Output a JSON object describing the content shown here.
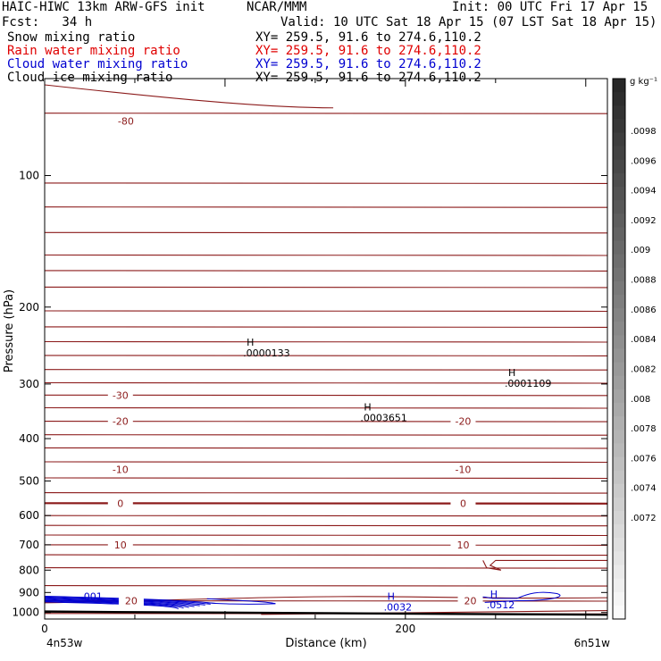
{
  "header": {
    "model": "HAIC-HIWC 13km ARW-GFS init",
    "org": "NCAR/MMM",
    "init": "Init: 00 UTC Fri 17 Apr 15",
    "fcst": "Fcst:   34 h",
    "valid": "Valid: 10 UTC Sat 18 Apr 15 (07 LST Sat 18 Apr 15)"
  },
  "fields": [
    {
      "label": "Snow mixing ratio",
      "xy": "XY= 259.5, 91.6 to 274.6,110.2",
      "color": "#000000"
    },
    {
      "label": "Rain water mixing ratio",
      "xy": "XY= 259.5, 91.6 to 274.6,110.2",
      "color": "#e00000"
    },
    {
      "label": "Cloud water mixing ratio",
      "xy": "XY= 259.5, 91.6 to 274.6,110.2",
      "color": "#0000d0"
    },
    {
      "label": "Cloud ice mixing ratio",
      "xy": "XY= 259.5, 91.6 to 274.6,110.2",
      "color": "#000000"
    }
  ],
  "chart_data": {
    "type": "contour",
    "xlabel": "Distance (km)",
    "ylabel": "Pressure (hPa)",
    "x_ticks": [
      0,
      200
    ],
    "xlim": [
      0,
      312
    ],
    "y_ticks": [
      100,
      200,
      300,
      400,
      500,
      600,
      700,
      800,
      900,
      1000
    ],
    "ylim": [
      1035,
      60
    ],
    "y_scale": "log",
    "x_endpoints": [
      "4n53w",
      "6n51w"
    ],
    "temperature_contours": [
      {
        "level": -80,
        "p": 75,
        "label_x": 45
      },
      {
        "level": -30,
        "p": 318,
        "label_x": 42
      },
      {
        "level": -20,
        "p": 365,
        "label_x": 42
      },
      {
        "level": -20,
        "p": 365,
        "label_x": 232
      },
      {
        "level": -10,
        "p": 470,
        "label_x": 42
      },
      {
        "level": -10,
        "p": 470,
        "label_x": 232
      },
      {
        "level": 0,
        "p": 562,
        "label_x": 42
      },
      {
        "level": 0,
        "p": 562,
        "label_x": 232
      },
      {
        "level": 10,
        "p": 700,
        "label_x": 42
      },
      {
        "level": 10,
        "p": 700,
        "label_x": 232
      },
      {
        "level": 20,
        "p": 940,
        "label_x": 48
      },
      {
        "level": 20,
        "p": 940,
        "label_x": 236
      }
    ],
    "maxima": [
      {
        "mark": "H",
        "value": ".0000133",
        "x": 112,
        "p": 245,
        "color": "#000000"
      },
      {
        "mark": "H",
        "value": ".0003651",
        "x": 177,
        "p": 345,
        "color": "#000000"
      },
      {
        "mark": "H",
        "value": ".0001109",
        "x": 257,
        "p": 288,
        "color": "#000000"
      },
      {
        "mark": "H",
        "value": ".0032",
        "x": 190,
        "p": 935,
        "color": "#0000d0"
      },
      {
        "mark": "H",
        "value": ".0512",
        "x": 247,
        "p": 925,
        "color": "#0000d0"
      }
    ],
    "cloud_water_label": {
      "value": ".001",
      "x": 14,
      "p": 918
    },
    "colorbar": {
      "unit": "g kg⁻¹",
      "ticks": [
        ".0098",
        ".0096",
        ".0094",
        ".0092",
        ".009",
        ".0088",
        ".0086",
        ".0084",
        ".0082",
        ".008",
        ".0078",
        ".0076",
        ".0074",
        ".0072"
      ]
    }
  }
}
